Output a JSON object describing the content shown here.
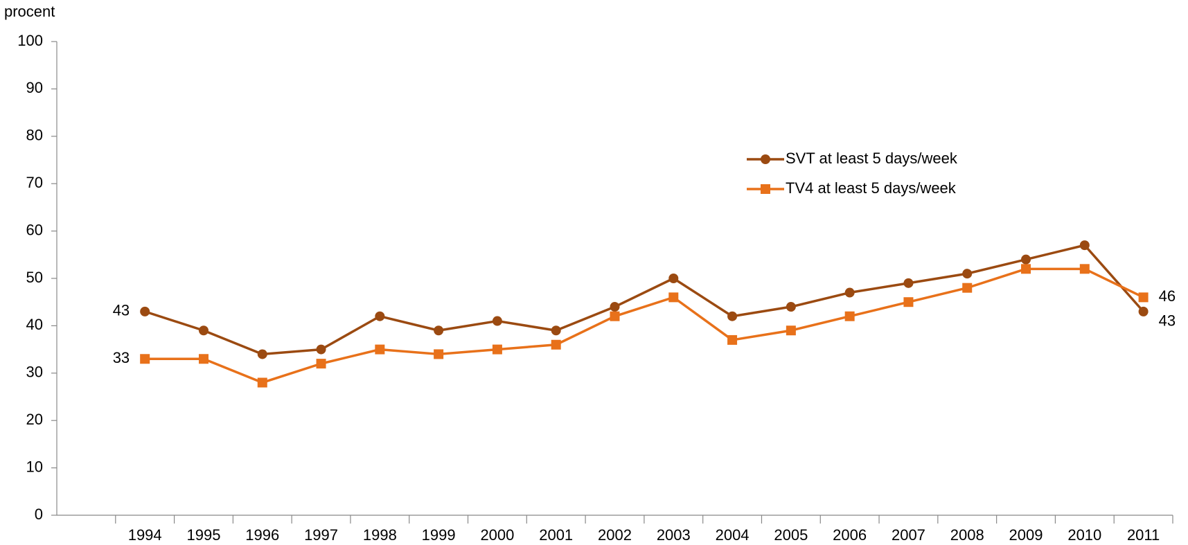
{
  "chart_data": {
    "type": "line",
    "y_label": "procent",
    "categories": [
      null,
      "1994",
      "1995",
      "1996",
      "1997",
      "1998",
      "1999",
      "2000",
      "2001",
      "2002",
      "2003",
      "2004",
      "2005",
      "2006",
      "2007",
      "2008",
      "2009",
      "2010",
      "2011"
    ],
    "series": [
      {
        "name": "SVT at least 5 days/week",
        "color": "#9b4a11",
        "marker": "circle",
        "values": [
          null,
          43,
          39,
          34,
          35,
          42,
          39,
          41,
          39,
          44,
          50,
          42,
          44,
          47,
          49,
          51,
          54,
          57,
          43
        ]
      },
      {
        "name": "TV4 at least 5 days/week",
        "color": "#e8711a",
        "marker": "square",
        "values": [
          null,
          33,
          33,
          28,
          32,
          35,
          34,
          35,
          36,
          42,
          46,
          37,
          39,
          42,
          45,
          48,
          52,
          52,
          46
        ]
      }
    ],
    "ylim": [
      0,
      100
    ],
    "yticks": [
      0,
      10,
      20,
      30,
      40,
      50,
      60,
      70,
      80,
      90,
      100
    ],
    "grid": false
  }
}
